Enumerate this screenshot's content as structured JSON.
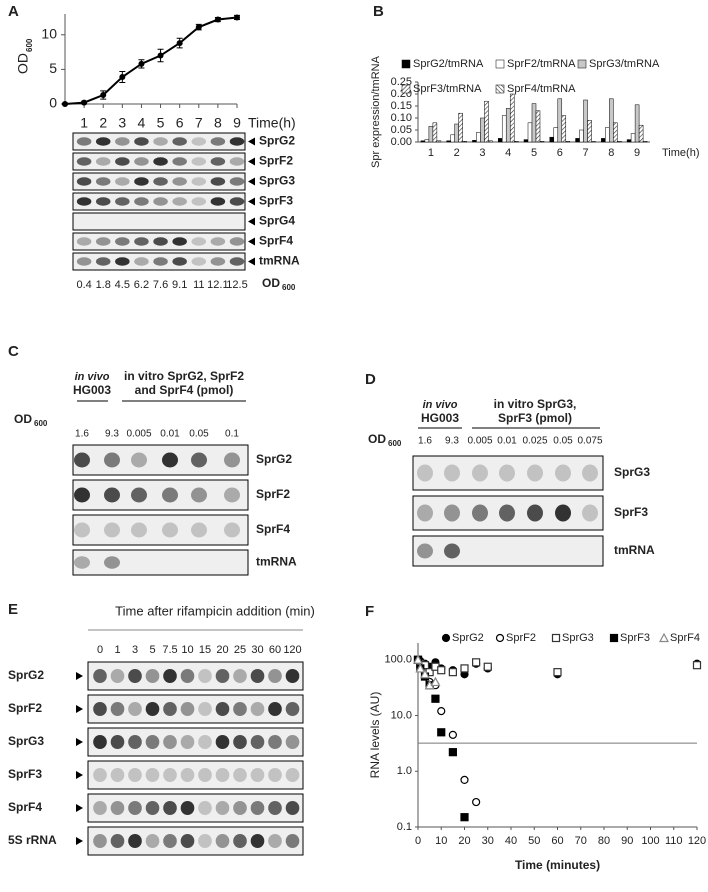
{
  "chart_data": [
    {
      "type": "line",
      "panel": "A",
      "y_label": "OD",
      "y_label_sub": "600",
      "x_label": "Time(h)",
      "x": [
        0,
        1,
        2,
        3,
        4,
        5,
        6,
        7,
        8,
        9
      ],
      "values": [
        0,
        0.2,
        1.3,
        3.9,
        5.8,
        7.0,
        8.8,
        11.1,
        12.2,
        12.5
      ],
      "errors": [
        0.1,
        0.2,
        0.6,
        0.8,
        0.6,
        0.9,
        0.7,
        0.4,
        0.3,
        0.3
      ],
      "xlim": [
        0,
        9
      ],
      "xticks": [
        1,
        2,
        3,
        4,
        5,
        6,
        7,
        8,
        9
      ],
      "ylim": [
        0,
        13
      ],
      "yticks": [
        0,
        5,
        10
      ],
      "color": "#000000"
    },
    {
      "type": "bar",
      "panel": "B",
      "y_label": "Spr expression/tmRNA",
      "x_label": "Time(h)",
      "categories": [
        "1",
        "2",
        "3",
        "4",
        "5",
        "6",
        "7",
        "8",
        "9"
      ],
      "series": [
        {
          "name": "SprG2/tmRNA",
          "color": "#000000",
          "values": [
            0.005,
            0.005,
            0.007,
            0.015,
            0.01,
            0.02,
            0.015,
            0.015,
            0.01
          ]
        },
        {
          "name": "SprF2/tmRNA",
          "color": "#ffffff",
          "values": [
            0.01,
            0.03,
            0.04,
            0.11,
            0.08,
            0.06,
            0.05,
            0.06,
            0.035
          ]
        },
        {
          "name": "SprG3/tmRNA",
          "color": "#c8c8c8",
          "values": [
            0.065,
            0.075,
            0.1,
            0.14,
            0.16,
            0.18,
            0.175,
            0.18,
            0.155
          ]
        },
        {
          "name": "SprF3/tmRNA",
          "color": "#ffffff",
          "pattern": "diagonal",
          "values": [
            0.08,
            0.12,
            0.17,
            0.2,
            0.13,
            0.11,
            0.09,
            0.08,
            0.07
          ]
        },
        {
          "name": "SprF4/tmRNA",
          "color": "#ffffff",
          "pattern": "hatched",
          "values": [
            0.005,
            0.003,
            0.005,
            0.003,
            0.003,
            0.003,
            0.002,
            0.003,
            0.003
          ]
        }
      ],
      "ylim": [
        0,
        0.25
      ],
      "yticks": [
        {
          "value": 0,
          "label": "0.00"
        },
        {
          "value": 0.05,
          "label": "0.05"
        },
        {
          "value": 0.1,
          "label": "0.10"
        },
        {
          "value": 0.15,
          "label": "0.15"
        },
        {
          "value": 0.2,
          "label": "0.20"
        },
        {
          "value": 0.25,
          "label": "0.25"
        }
      ]
    },
    {
      "type": "scatter",
      "panel": "F",
      "y_label": "RNA levels (AU)",
      "x_label": "Time (minutes)",
      "x": [
        0,
        1,
        3,
        5,
        7.5,
        10,
        15,
        20,
        25,
        30,
        60,
        120
      ],
      "series": [
        {
          "name": "SprG2",
          "color": "#000000",
          "marker": "circle",
          "filled": true,
          "values": [
            100,
            95,
            85,
            75,
            90,
            70,
            65,
            55,
            85,
            70,
            55,
            85
          ]
        },
        {
          "name": "SprF2",
          "color": "#000000",
          "marker": "circle",
          "filled": false,
          "values": [
            100,
            80,
            60,
            40,
            35,
            12,
            4.5,
            0.7,
            0.28,
            null,
            null,
            null
          ]
        },
        {
          "name": "SprG3",
          "color": "#333333",
          "marker": "square",
          "filled": false,
          "values": [
            100,
            85,
            80,
            60,
            75,
            65,
            60,
            70,
            90,
            75,
            60,
            80
          ]
        },
        {
          "name": "SprF3",
          "color": "#000000",
          "marker": "square",
          "filled": true,
          "values": [
            100,
            70,
            50,
            35,
            20,
            5,
            2.2,
            0.15,
            null,
            null,
            null,
            null
          ]
        },
        {
          "name": "SprF4",
          "color": "#888888",
          "marker": "triangle",
          "filled": false,
          "values": [
            100,
            70,
            55,
            35,
            40,
            null,
            null,
            null,
            null,
            null,
            null,
            null
          ]
        }
      ],
      "xlim": [
        0,
        120
      ],
      "xticks": [
        0,
        10,
        20,
        30,
        40,
        50,
        60,
        70,
        80,
        90,
        100,
        110,
        120
      ],
      "ylim": [
        0.1,
        200
      ],
      "log_y": true,
      "yticks": [
        0.1,
        {
          "value": 1,
          "label": "1.0"
        },
        {
          "value": 10,
          "label": "10.0"
        },
        {
          "value": 100,
          "label": "100.0"
        }
      ],
      "reference_line": 3.2
    }
  ],
  "blots": {
    "A": {
      "rows": [
        "SprG2",
        "SprF2",
        "SprG3",
        "SprF3",
        "SprG4",
        "SprF4",
        "tmRNA"
      ],
      "od_label": "OD",
      "od_sub": "600",
      "od_values": [
        0.4,
        1.8,
        4.5,
        6.2,
        7.6,
        9.1,
        11,
        12.1,
        12.5
      ]
    },
    "C": {
      "panel": "C",
      "in_vivo": "in vivo",
      "strain": "HG003",
      "in_vitro": [
        "in vitro SprG2, SprF2",
        "and SprF4 (pmol)"
      ],
      "od_label": "OD",
      "od_sub": "600",
      "amounts": [
        1.6,
        9.3,
        0.005,
        0.01,
        0.05,
        0.1
      ],
      "rows": [
        "SprG2",
        "SprF2",
        "SprF4",
        "tmRNA"
      ]
    },
    "D": {
      "panel": "D",
      "in_vivo": "in vivo",
      "strain": "HG003",
      "in_vitro": [
        "in vitro SprG3,",
        "SprF3 (pmol)"
      ],
      "od_label": "OD",
      "od_sub": "600",
      "amounts": [
        1.6,
        9.3,
        0.005,
        0.01,
        0.025,
        0.05,
        0.075
      ],
      "rows": [
        "SprG3",
        "SprF3",
        "tmRNA"
      ]
    },
    "E": {
      "panel": "E",
      "title": "Time after rifampicin addition (min)",
      "times": [
        0,
        1,
        3,
        5,
        7.5,
        10,
        15,
        20,
        25,
        30,
        60,
        120
      ],
      "rows": [
        "SprG2",
        "SprF2",
        "SprG3",
        "SprF3",
        "SprF4",
        "5S rRNA"
      ]
    }
  }
}
